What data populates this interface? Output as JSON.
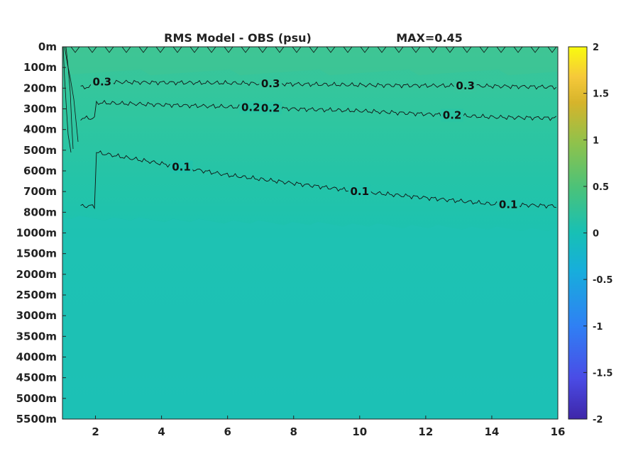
{
  "chart_data": {
    "type": "heatmap",
    "title": "RMS Model - OBS (psu)",
    "max_label": "MAX=0.45",
    "x_ticks": [
      "2",
      "4",
      "6",
      "8",
      "10",
      "12",
      "14",
      "16"
    ],
    "x_tick_values": [
      2,
      4,
      6,
      8,
      10,
      12,
      14,
      16
    ],
    "xlim": [
      1,
      16
    ],
    "y_ticks": [
      "0m",
      "100m",
      "200m",
      "300m",
      "400m",
      "500m",
      "600m",
      "700m",
      "800m",
      "1000m",
      "1500m",
      "2000m",
      "2500m",
      "3000m",
      "3500m",
      "4000m",
      "4500m",
      "5000m",
      "5500m"
    ],
    "colorbar": {
      "ticks": [
        "2",
        "1.5",
        "1",
        "0.5",
        "0",
        "-0.5",
        "-1",
        "-1.5",
        "-2"
      ],
      "range": [
        -2,
        2
      ],
      "colormap": [
        "#3e26a8",
        "#4a4ce6",
        "#2f80f4",
        "#17aedb",
        "#17c0b5",
        "#4ac27a",
        "#8ec24c",
        "#d6b42b",
        "#f6c93a",
        "#f9fb0e"
      ]
    },
    "field_colors": {
      "surface": "#3bc598",
      "upper": "#2fc6a0",
      "mid": "#22c4aa",
      "deep": "#1bc2b2",
      "abyss": "#18c0b7"
    },
    "contours": [
      {
        "level": 0.3,
        "labels": [
          "0.3",
          "0.3",
          "0.3"
        ],
        "depth_points": [
          {
            "x": 2,
            "depth": 170
          },
          {
            "x": 6,
            "depth": 175
          },
          {
            "x": 10,
            "depth": 185
          },
          {
            "x": 14,
            "depth": 190
          },
          {
            "x": 16,
            "depth": 195
          }
        ]
      },
      {
        "level": 0.2,
        "labels": [
          "0.2",
          "0.2",
          "0.2"
        ],
        "depth_points": [
          {
            "x": 2,
            "depth": 270
          },
          {
            "x": 6,
            "depth": 290
          },
          {
            "x": 10,
            "depth": 310
          },
          {
            "x": 14,
            "depth": 340
          },
          {
            "x": 16,
            "depth": 345
          }
        ]
      },
      {
        "level": 0.1,
        "labels": [
          "0.1",
          "0.1",
          "0.1"
        ],
        "depth_points": [
          {
            "x": 2,
            "depth": 510
          },
          {
            "x": 6,
            "depth": 620
          },
          {
            "x": 10,
            "depth": 700
          },
          {
            "x": 14,
            "depth": 760
          },
          {
            "x": 16,
            "depth": 770
          }
        ]
      }
    ]
  }
}
